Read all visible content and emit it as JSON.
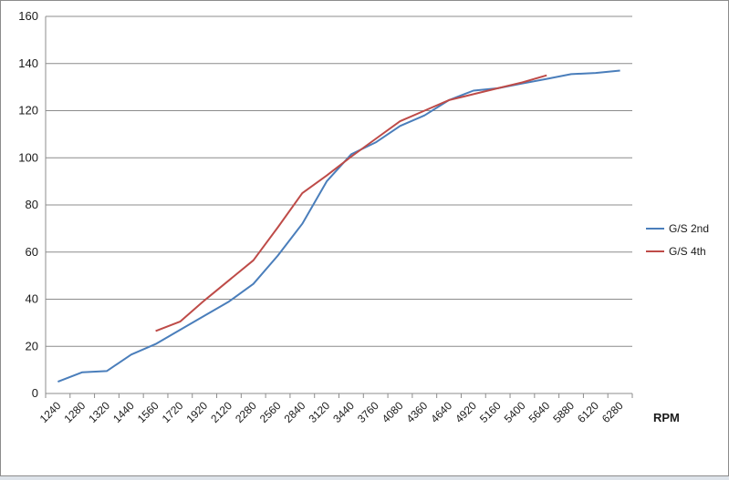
{
  "chart_data": {
    "type": "line",
    "title": "",
    "xlabel": "RPM",
    "ylabel": "",
    "ylim": [
      0,
      160
    ],
    "yticks": [
      0,
      20,
      40,
      60,
      80,
      100,
      120,
      140,
      160
    ],
    "grid": "horizontal",
    "legend_position": "right",
    "categories": [
      "1240",
      "1280",
      "1320",
      "1440",
      "1560",
      "1720",
      "1920",
      "2120",
      "2280",
      "2560",
      "2840",
      "3120",
      "3440",
      "3760",
      "4080",
      "4360",
      "4640",
      "4920",
      "5160",
      "5400",
      "5640",
      "5880",
      "6120",
      "6280"
    ],
    "series": [
      {
        "name": "G/S 2nd",
        "color": "#4a7ebb",
        "values": [
          5,
          9,
          9.5,
          16.5,
          21,
          27,
          33,
          39,
          46.5,
          58.5,
          72,
          90,
          101.5,
          106.5,
          113.5,
          118,
          124.5,
          128.5,
          129.5,
          131.5,
          133.5,
          135.5,
          136,
          137
        ]
      },
      {
        "name": "G/S 4th",
        "color": "#be4b48",
        "values": [
          null,
          null,
          null,
          null,
          26.5,
          30.5,
          39.5,
          48,
          56.5,
          70.5,
          85,
          92.5,
          100.5,
          108,
          115.5,
          120,
          124.5,
          127,
          129.5,
          132,
          135,
          null,
          null,
          null
        ]
      }
    ]
  }
}
